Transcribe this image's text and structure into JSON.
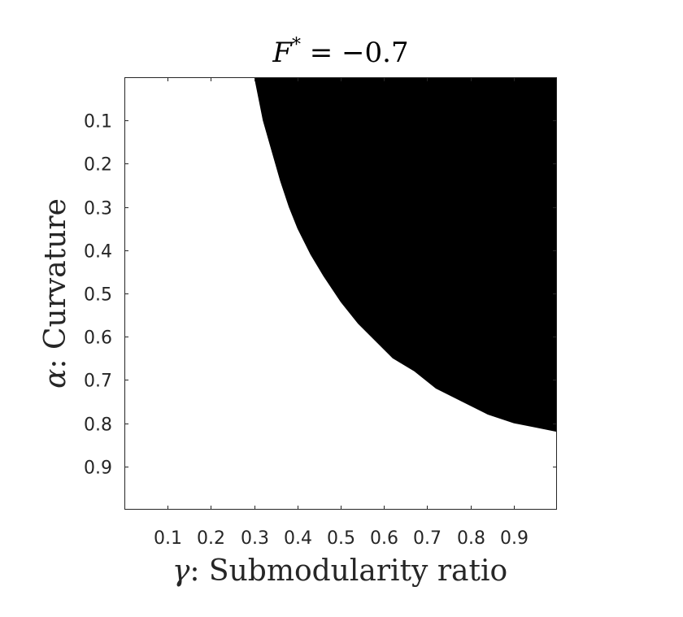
{
  "chart_data": {
    "type": "heatmap",
    "title": "F* = −0.7",
    "title_parts": {
      "var": "F",
      "sup": "*",
      "rest": " = −0.7"
    },
    "xlabel": "γ: Submodularity ratio",
    "xlabel_parts": {
      "sym": "γ",
      "text": ": Submodularity ratio"
    },
    "ylabel": "α: Curvature",
    "ylabel_parts": {
      "sym": "α",
      "text": ": Curvature"
    },
    "xlim": [
      0,
      1
    ],
    "ylim": [
      0,
      1
    ],
    "y_reversed": true,
    "x_ticks": [
      0.1,
      0.2,
      0.3,
      0.4,
      0.5,
      0.6,
      0.7,
      0.8,
      0.9
    ],
    "x_tick_labels": [
      "0.1",
      "0.2",
      "0.3",
      "0.4",
      "0.5",
      "0.6",
      "0.7",
      "0.8",
      "0.9"
    ],
    "y_ticks": [
      0.1,
      0.2,
      0.3,
      0.4,
      0.5,
      0.6,
      0.7,
      0.8,
      0.9
    ],
    "y_tick_labels": [
      "0.1",
      "0.2",
      "0.3",
      "0.4",
      "0.5",
      "0.6",
      "0.7",
      "0.8",
      "0.9"
    ],
    "grid": false,
    "colors": {
      "filled": "#000000",
      "empty": "#ffffff",
      "axes": "#262626"
    },
    "filled_region_boundary": {
      "description_of_values": "alpha value of the boundary at each gamma; region with alpha below boundary (toward top) and gamma to the right is filled black",
      "gamma": [
        0.3,
        0.31,
        0.32,
        0.34,
        0.36,
        0.38,
        0.4,
        0.43,
        0.46,
        0.5,
        0.54,
        0.58,
        0.62,
        0.67,
        0.72,
        0.78,
        0.84,
        0.9,
        0.95,
        1.0
      ],
      "alpha": [
        0.0,
        0.05,
        0.1,
        0.17,
        0.24,
        0.3,
        0.35,
        0.41,
        0.46,
        0.52,
        0.57,
        0.61,
        0.65,
        0.68,
        0.72,
        0.75,
        0.78,
        0.8,
        0.81,
        0.82
      ]
    }
  }
}
